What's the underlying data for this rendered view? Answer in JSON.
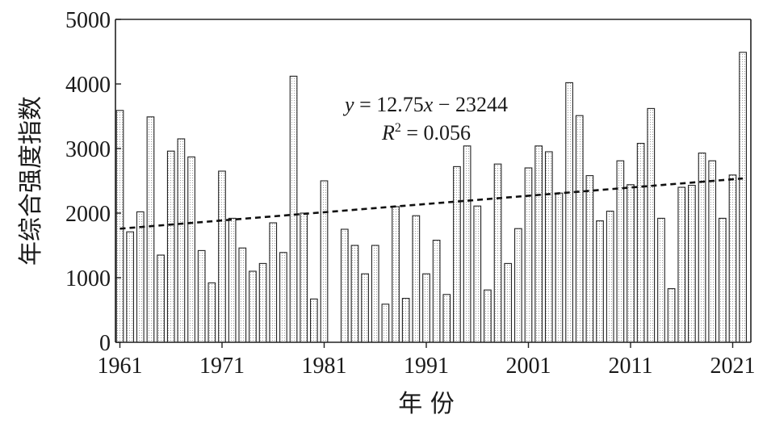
{
  "chart_data": {
    "type": "bar",
    "xlabel": "年 份",
    "ylabel": "年综合强度指数",
    "ylim": [
      0,
      5000
    ],
    "xlim": [
      1961,
      2022
    ],
    "y_ticks": [
      "0",
      "1000",
      "2000",
      "3000",
      "4000",
      "5000"
    ],
    "x_ticks": [
      "1961",
      "1971",
      "1981",
      "1991",
      "2001",
      "2011",
      "2021"
    ],
    "x": [
      1961,
      1962,
      1963,
      1964,
      1965,
      1966,
      1967,
      1968,
      1969,
      1970,
      1971,
      1972,
      1973,
      1974,
      1975,
      1976,
      1977,
      1978,
      1979,
      1980,
      1981,
      1982,
      1983,
      1984,
      1985,
      1986,
      1987,
      1988,
      1989,
      1990,
      1991,
      1992,
      1993,
      1994,
      1995,
      1996,
      1997,
      1998,
      1999,
      2000,
      2001,
      2002,
      2003,
      2004,
      2005,
      2006,
      2007,
      2008,
      2009,
      2010,
      2011,
      2012,
      2013,
      2014,
      2015,
      2016,
      2017,
      2018,
      2019,
      2020,
      2021,
      2022
    ],
    "values": [
      3590,
      1710,
      2020,
      3490,
      1350,
      2960,
      3150,
      2870,
      1420,
      920,
      2650,
      1920,
      1460,
      1100,
      1220,
      1850,
      1390,
      4120,
      2000,
      670,
      2500,
      0,
      1750,
      1500,
      1060,
      1500,
      590,
      2100,
      680,
      1960,
      1060,
      1580,
      740,
      2720,
      3040,
      2110,
      810,
      2760,
      1220,
      1760,
      2700,
      3040,
      2950,
      2310,
      4020,
      3510,
      2580,
      1880,
      2030,
      2810,
      2440,
      3080,
      3620,
      1920,
      830,
      2400,
      2430,
      2930,
      2810,
      1920,
      2590,
      4490
    ],
    "trendline": {
      "slope": 12.75,
      "intercept": -23244,
      "equation_y": "y",
      "equation_rest": " = 12.75",
      "equation_x": "x",
      "equation_tail": " − 23244",
      "r2_prefix": "R",
      "r2_sup": "2",
      "r2_rest": " = 0.056"
    },
    "grid": false,
    "bar_pattern": "dotted"
  }
}
